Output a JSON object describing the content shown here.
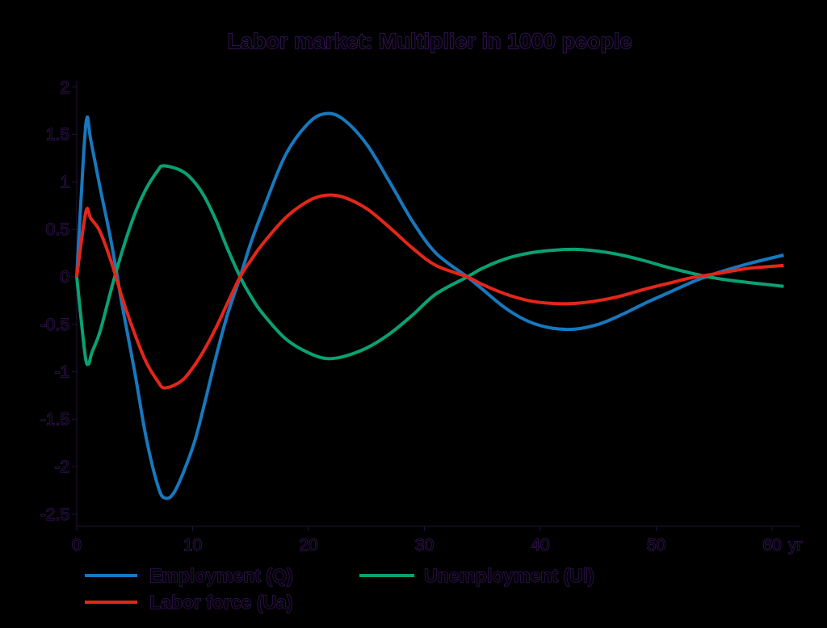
{
  "title": "Labor market: Multiplier in 1000 people",
  "colors": {
    "background": "#000000",
    "text_fill": "#05020a",
    "text_stroke": "#4a1f78",
    "axis": "#241038",
    "employment": "#1778bd",
    "unemployment": "#09a173",
    "labor_force": "#e32619"
  },
  "chart_data": {
    "type": "line",
    "title": "Labor market: Multiplier in 1000 people",
    "xlabel": "",
    "ylabel": "",
    "x_unit": "yr",
    "xlim": [
      0,
      62
    ],
    "ylim": [
      -2.5,
      2
    ],
    "x_ticks": [
      0,
      10,
      20,
      30,
      40,
      50,
      60
    ],
    "y_ticks": [
      2,
      1.5,
      1,
      0.5,
      0,
      -0.5,
      -1,
      -1.5,
      -2,
      -2.5
    ],
    "grid": false,
    "legend_position": "bottom",
    "series": [
      {
        "name": "Employment (Q)",
        "color": "#1778bd",
        "points": [
          [
            0,
            0
          ],
          [
            0.6,
            1.3
          ],
          [
            0.9,
            1.68
          ],
          [
            1.2,
            1.45
          ],
          [
            2,
            0.95
          ],
          [
            3,
            0.35
          ],
          [
            4,
            -0.35
          ],
          [
            5,
            -1.0
          ],
          [
            6,
            -1.7
          ],
          [
            7,
            -2.2
          ],
          [
            7.6,
            -2.33
          ],
          [
            8.5,
            -2.25
          ],
          [
            10,
            -1.8
          ],
          [
            11,
            -1.35
          ],
          [
            12,
            -0.85
          ],
          [
            13,
            -0.4
          ],
          [
            14.1,
            0
          ],
          [
            15,
            0.35
          ],
          [
            16,
            0.68
          ],
          [
            18,
            1.28
          ],
          [
            20,
            1.62
          ],
          [
            21.5,
            1.72
          ],
          [
            23,
            1.66
          ],
          [
            25,
            1.4
          ],
          [
            27,
            1.0
          ],
          [
            29,
            0.58
          ],
          [
            31,
            0.25
          ],
          [
            33.7,
            0
          ],
          [
            35,
            -0.13
          ],
          [
            37,
            -0.33
          ],
          [
            39,
            -0.47
          ],
          [
            41,
            -0.54
          ],
          [
            43,
            -0.55
          ],
          [
            45,
            -0.5
          ],
          [
            47,
            -0.4
          ],
          [
            49,
            -0.28
          ],
          [
            51,
            -0.17
          ],
          [
            53,
            -0.06
          ],
          [
            54.5,
            0.01
          ],
          [
            56,
            0.07
          ],
          [
            58,
            0.14
          ],
          [
            61,
            0.23
          ]
        ]
      },
      {
        "name": "Unemployment (Ul)",
        "color": "#09a173",
        "points": [
          [
            0,
            0
          ],
          [
            0.7,
            -0.8
          ],
          [
            1,
            -0.92
          ],
          [
            1.3,
            -0.8
          ],
          [
            2,
            -0.58
          ],
          [
            3,
            -0.12
          ],
          [
            4,
            0.3
          ],
          [
            5,
            0.66
          ],
          [
            6,
            0.93
          ],
          [
            7,
            1.12
          ],
          [
            7.5,
            1.17
          ],
          [
            9,
            1.12
          ],
          [
            10,
            1.02
          ],
          [
            11,
            0.85
          ],
          [
            12,
            0.6
          ],
          [
            13,
            0.3
          ],
          [
            14.1,
            0
          ],
          [
            15,
            -0.2
          ],
          [
            16,
            -0.38
          ],
          [
            18,
            -0.65
          ],
          [
            20,
            -0.8
          ],
          [
            21.5,
            -0.86
          ],
          [
            23,
            -0.84
          ],
          [
            25,
            -0.75
          ],
          [
            27,
            -0.6
          ],
          [
            29,
            -0.4
          ],
          [
            31,
            -0.18
          ],
          [
            33.7,
            0
          ],
          [
            35,
            0.09
          ],
          [
            37,
            0.19
          ],
          [
            39,
            0.25
          ],
          [
            41,
            0.28
          ],
          [
            43,
            0.29
          ],
          [
            45,
            0.27
          ],
          [
            47,
            0.23
          ],
          [
            49,
            0.17
          ],
          [
            51,
            0.1
          ],
          [
            53,
            0.04
          ],
          [
            54.5,
            0.0
          ],
          [
            56,
            -0.03
          ],
          [
            58,
            -0.06
          ],
          [
            61,
            -0.1
          ]
        ]
      },
      {
        "name": "Labor force (Ua)",
        "color": "#e32619",
        "points": [
          [
            0,
            0
          ],
          [
            0.6,
            0.55
          ],
          [
            0.9,
            0.72
          ],
          [
            1.2,
            0.62
          ],
          [
            2,
            0.48
          ],
          [
            3,
            0.15
          ],
          [
            4,
            -0.25
          ],
          [
            5,
            -0.6
          ],
          [
            6,
            -0.9
          ],
          [
            7,
            -1.1
          ],
          [
            7.6,
            -1.17
          ],
          [
            9,
            -1.1
          ],
          [
            10,
            -0.96
          ],
          [
            11,
            -0.77
          ],
          [
            12,
            -0.54
          ],
          [
            13,
            -0.28
          ],
          [
            14.1,
            0
          ],
          [
            15,
            0.17
          ],
          [
            16,
            0.34
          ],
          [
            18,
            0.62
          ],
          [
            20,
            0.8
          ],
          [
            21.5,
            0.86
          ],
          [
            23,
            0.84
          ],
          [
            25,
            0.72
          ],
          [
            27,
            0.52
          ],
          [
            29,
            0.3
          ],
          [
            31,
            0.12
          ],
          [
            33.7,
            0
          ],
          [
            35,
            -0.08
          ],
          [
            37,
            -0.18
          ],
          [
            39,
            -0.25
          ],
          [
            41,
            -0.28
          ],
          [
            43,
            -0.28
          ],
          [
            45,
            -0.25
          ],
          [
            47,
            -0.2
          ],
          [
            49,
            -0.13
          ],
          [
            51,
            -0.07
          ],
          [
            53,
            -0.01
          ],
          [
            54.5,
            0.02
          ],
          [
            56,
            0.05
          ],
          [
            58,
            0.09
          ],
          [
            61,
            0.12
          ]
        ]
      }
    ]
  },
  "legend": {
    "items": [
      {
        "label": "Employment (Q)"
      },
      {
        "label": "Unemployment (Ul)"
      },
      {
        "label": "Labor force (Ua)"
      }
    ]
  }
}
